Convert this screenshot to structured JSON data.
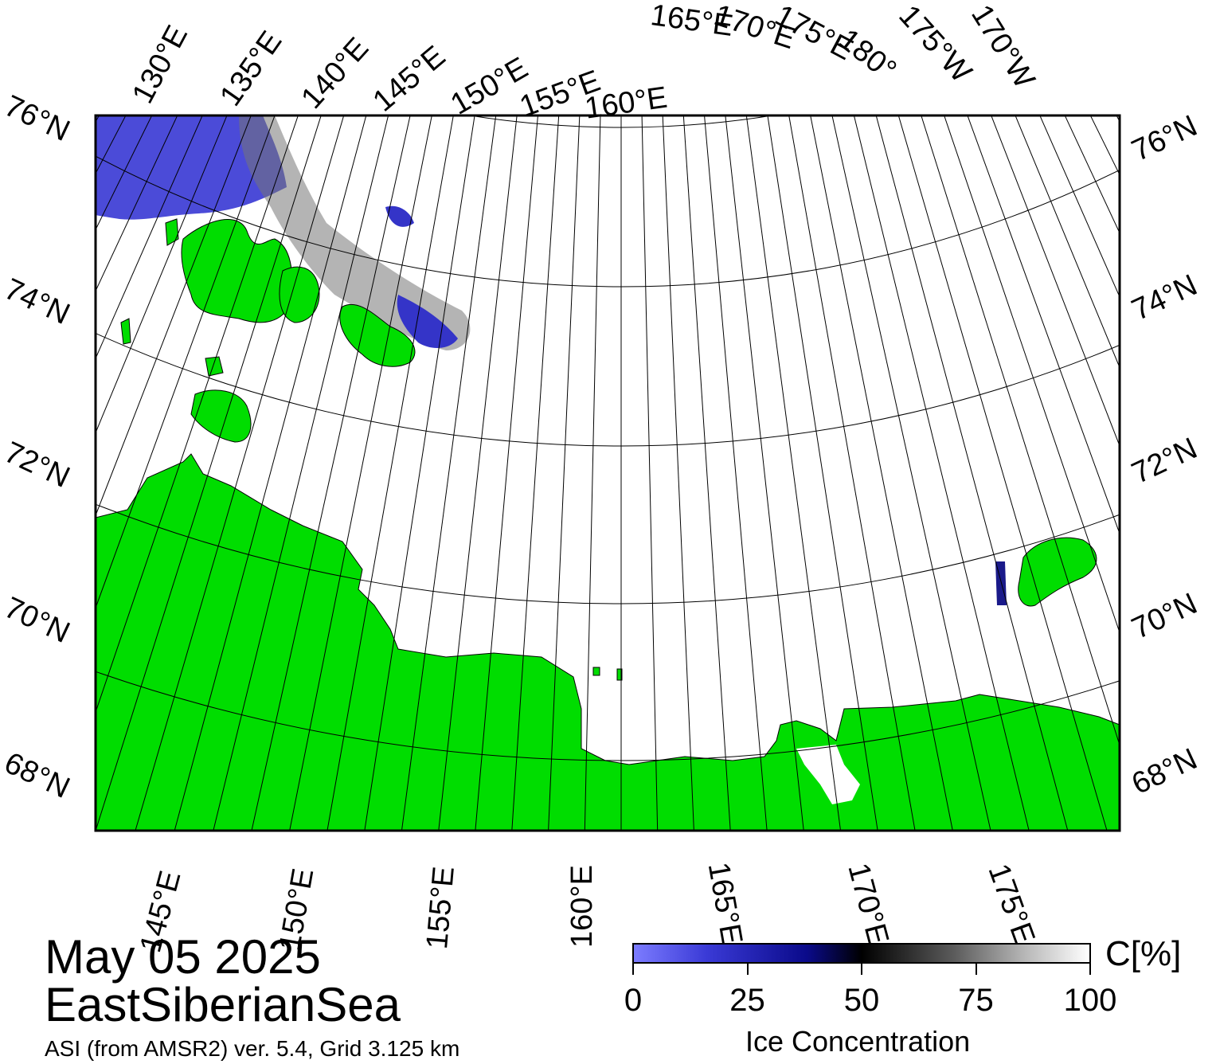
{
  "map": {
    "colors": {
      "land": "#00dd00",
      "ocean_ice": "#ffffff",
      "open_water": "#6666ee",
      "frame": "#000000"
    },
    "top_lon_labels": [
      "130°E",
      "135°E",
      "140°E",
      "145°E",
      "150°E",
      "155°E",
      "160°E",
      "165°E",
      "170°E",
      "175°E",
      "180°",
      "175°W",
      "170°W"
    ],
    "bottom_lon_labels": [
      "145°E",
      "150°E",
      "155°E",
      "160°E",
      "165°E",
      "170°E",
      "175°E"
    ],
    "left_lat_labels": [
      "76°N",
      "74°N",
      "72°N",
      "70°N",
      "68°N"
    ],
    "right_lat_labels": [
      "76°N",
      "74°N",
      "72°N",
      "70°N",
      "68°N"
    ]
  },
  "info": {
    "date": "May 05 2025",
    "region": "EastSiberianSea",
    "source": "ASI (from AMSR2) ver. 5.4,  Grid 3.125 km"
  },
  "colorbar": {
    "unit": "C[%]",
    "title": "Ice Concentration",
    "ticks": [
      "0",
      "25",
      "50",
      "75",
      "100"
    ]
  }
}
